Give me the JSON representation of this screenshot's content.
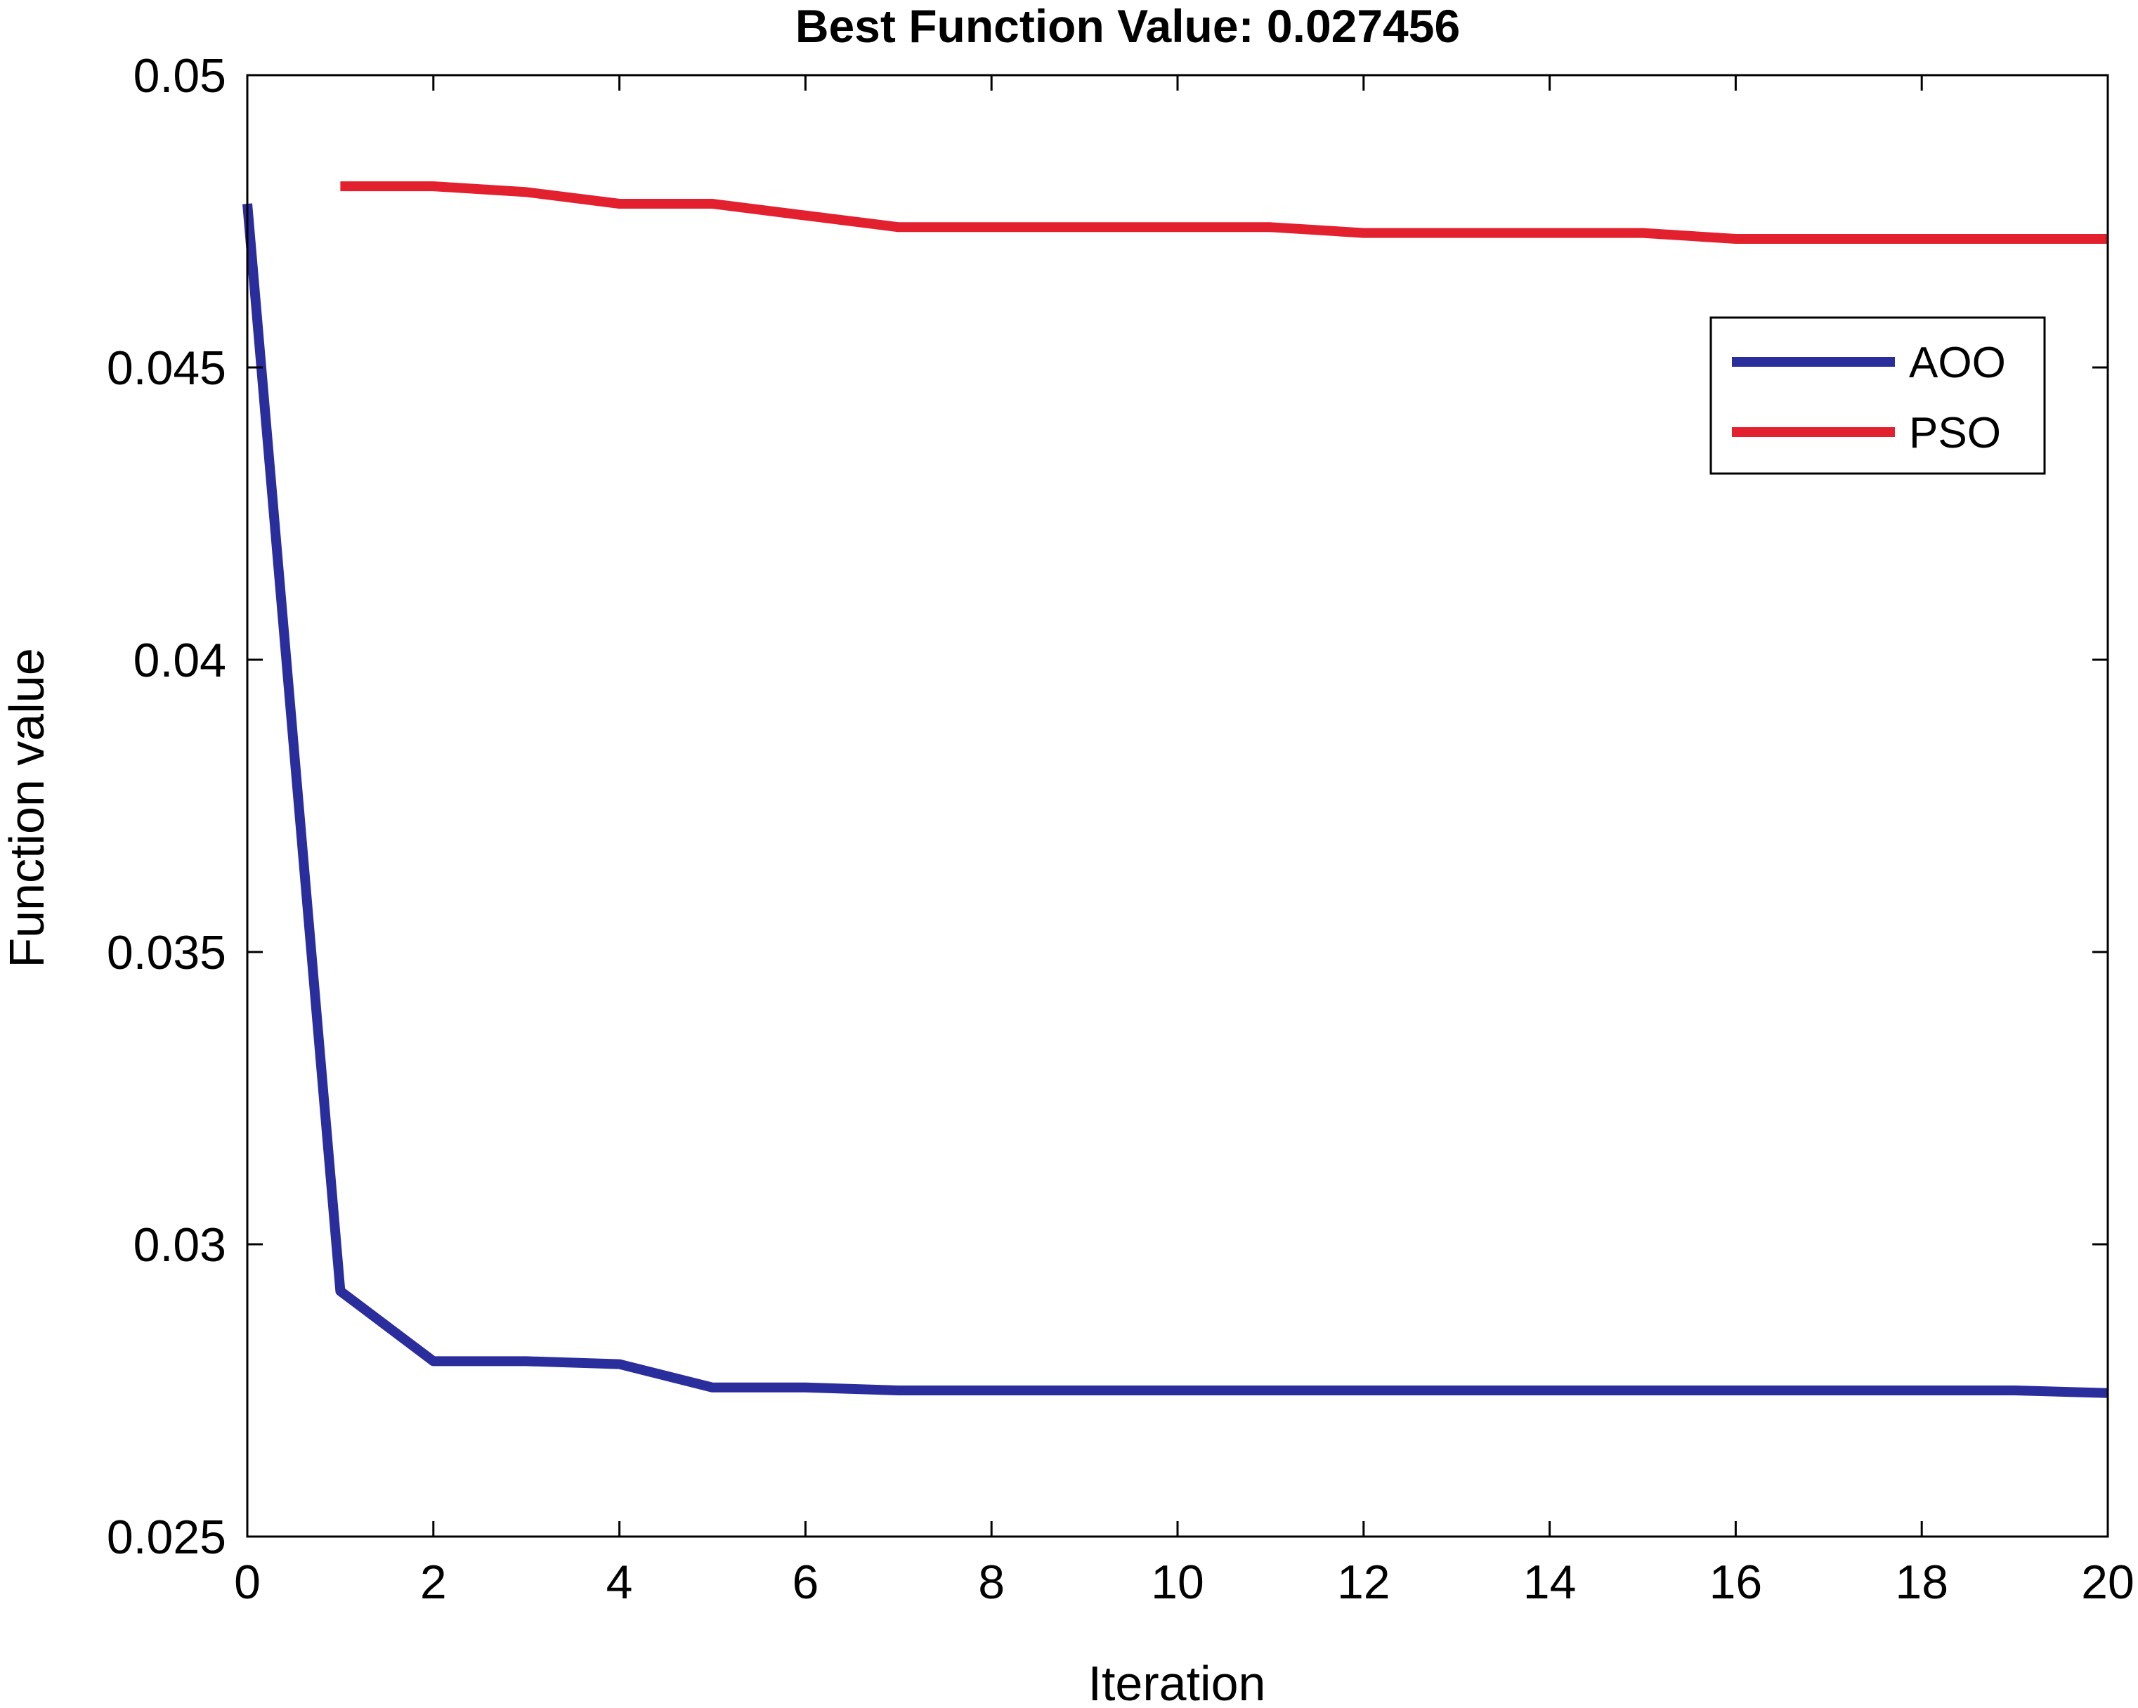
{
  "chart_data": {
    "type": "line",
    "title": "Best Function Value: 0.027456",
    "xlabel": "Iteration",
    "ylabel": "Function value",
    "xlim": [
      0,
      20
    ],
    "ylim": [
      0.025,
      0.05
    ],
    "xticks": [
      0,
      2,
      4,
      6,
      8,
      10,
      12,
      14,
      16,
      18,
      20
    ],
    "yticks": [
      0.025,
      0.03,
      0.035,
      0.04,
      0.045,
      0.05
    ],
    "xtick_labels": [
      "0",
      "2",
      "4",
      "6",
      "8",
      "10",
      "12",
      "14",
      "16",
      "18",
      "20"
    ],
    "ytick_labels": [
      "0.025",
      "0.03",
      "0.035",
      "0.04",
      "0.045",
      "0.05"
    ],
    "grid": false,
    "legend_position": "top-right",
    "series": [
      {
        "name": "AOO",
        "color": "#2a2d9c",
        "x": [
          0,
          1,
          2,
          3,
          4,
          5,
          6,
          7,
          8,
          9,
          10,
          11,
          12,
          13,
          14,
          15,
          16,
          17,
          18,
          19,
          20
        ],
        "y": [
          0.0478,
          0.0292,
          0.028,
          0.028,
          0.02795,
          0.02755,
          0.02755,
          0.0275,
          0.0275,
          0.0275,
          0.0275,
          0.0275,
          0.0275,
          0.0275,
          0.0275,
          0.0275,
          0.0275,
          0.0275,
          0.0275,
          0.0275,
          0.027456
        ]
      },
      {
        "name": "PSO",
        "color": "#e3202d",
        "x": [
          1,
          2,
          3,
          4,
          5,
          6,
          7,
          8,
          9,
          10,
          11,
          12,
          13,
          14,
          15,
          16,
          17,
          18,
          19,
          20
        ],
        "y": [
          0.0481,
          0.0481,
          0.048,
          0.0478,
          0.0478,
          0.0476,
          0.0474,
          0.0474,
          0.0474,
          0.0474,
          0.0474,
          0.0473,
          0.0473,
          0.0473,
          0.0473,
          0.0472,
          0.0472,
          0.0472,
          0.0472,
          0.0472
        ]
      }
    ]
  }
}
